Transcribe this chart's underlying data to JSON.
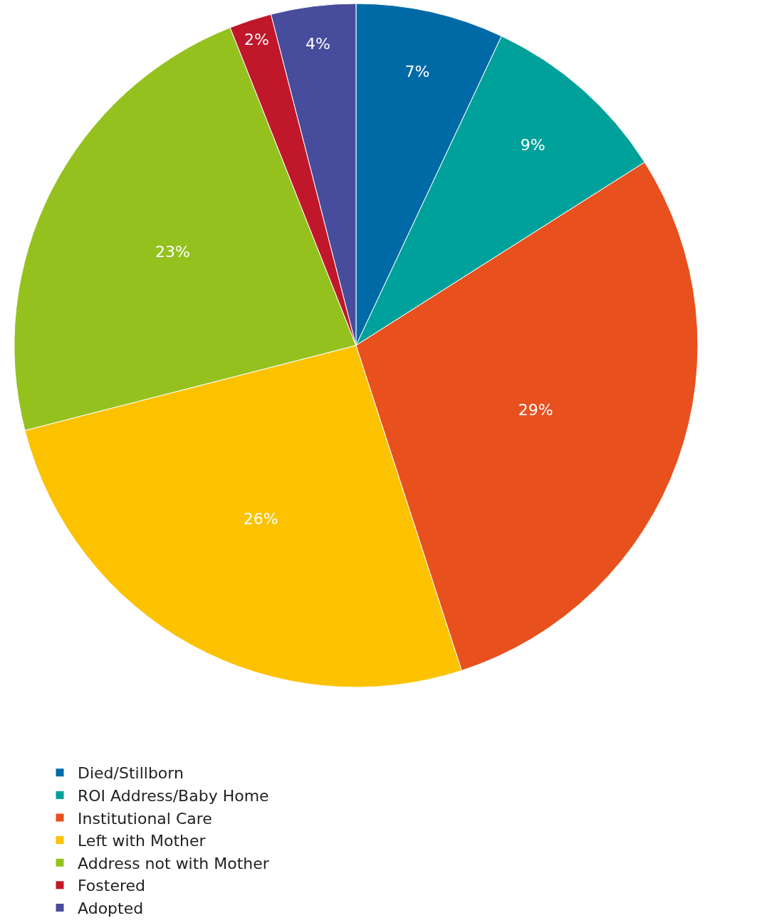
{
  "chart_data": {
    "type": "pie",
    "categories": [
      "Died/Stillborn",
      "ROI Address/Baby Home",
      "Institutional Care",
      "Left with Mother",
      "Address not with Mother",
      "Fostered",
      "Adopted"
    ],
    "values": [
      7,
      9,
      29,
      26,
      23,
      2,
      4
    ],
    "value_labels": [
      "7%",
      "9%",
      "29%",
      "26%",
      "23%",
      "2%",
      "4%"
    ],
    "colors": [
      "#006aa7",
      "#00a19a",
      "#e8501e",
      "#fcc200",
      "#95c11f",
      "#c0172a",
      "#474c9c"
    ],
    "legend": "bottom"
  }
}
